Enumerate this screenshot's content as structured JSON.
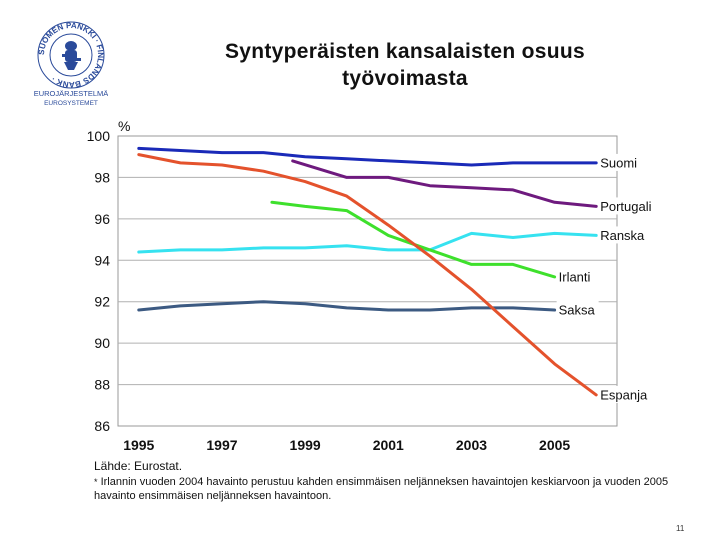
{
  "logo": {
    "ring_text": "SUOMEN PANKKI · FINLANDS BANK ·",
    "sub_line1": "EUROJÄRJESTELMÄ",
    "sub_line2": "EUROSYSTEMET"
  },
  "title": {
    "line1": "Syntyperäisten kansalaisten osuus",
    "line2": "työvoimasta"
  },
  "chart_data": {
    "type": "line",
    "title": "Syntyperäisten kansalaisten osuus työvoimasta",
    "xlabel": "",
    "ylabel": "%",
    "xlim": [
      1994.5,
      2006.5
    ],
    "ylim": [
      86,
      100
    ],
    "yticks": [
      86,
      88,
      90,
      92,
      94,
      96,
      98,
      100
    ],
    "xticks": [
      1995,
      1997,
      1999,
      2001,
      2003,
      2005
    ],
    "grid": "horizontal",
    "series": [
      {
        "name": "Suomi",
        "color": "#1a2ab8",
        "x": [
          1995,
          1996,
          1997,
          1998,
          1999,
          2000,
          2001,
          2002,
          2003,
          2004,
          2005,
          2006
        ],
        "y": [
          99.4,
          99.3,
          99.2,
          99.2,
          99.0,
          98.9,
          98.8,
          98.7,
          98.6,
          98.7,
          98.7,
          98.7
        ]
      },
      {
        "name": "Portugali",
        "color": "#6e1a7e",
        "x": [
          1998.7,
          2000,
          2001,
          2002,
          2003,
          2004,
          2005,
          2006
        ],
        "y": [
          98.8,
          98.0,
          98.0,
          97.6,
          97.5,
          97.4,
          96.8,
          96.6
        ]
      },
      {
        "name": "Ranska",
        "color": "#36e2f0",
        "x": [
          1995,
          1996,
          1997,
          1998,
          1999,
          2000,
          2001,
          2002,
          2003,
          2004,
          2005,
          2006
        ],
        "y": [
          94.4,
          94.5,
          94.5,
          94.6,
          94.6,
          94.7,
          94.5,
          94.5,
          95.3,
          95.1,
          95.3,
          95.2
        ]
      },
      {
        "name": "Irlanti",
        "color": "#3ee02c",
        "x": [
          1998.2,
          1999,
          2000,
          2001,
          2002,
          2003,
          2004,
          2005
        ],
        "y": [
          96.8,
          96.6,
          96.4,
          95.2,
          94.5,
          93.8,
          93.8,
          93.2
        ]
      },
      {
        "name": "Saksa",
        "color": "#3c5a82",
        "x": [
          1995,
          1996,
          1997,
          1998,
          1999,
          2000,
          2001,
          2002,
          2003,
          2004,
          2005
        ],
        "y": [
          91.6,
          91.8,
          91.9,
          92.0,
          91.9,
          91.7,
          91.6,
          91.6,
          91.7,
          91.7,
          91.6
        ]
      },
      {
        "name": "Espanja",
        "color": "#e4522c",
        "x": [
          1995,
          1996,
          1997,
          1998,
          1999,
          2000,
          2001,
          2002,
          2003,
          2004,
          2005,
          2006
        ],
        "y": [
          99.1,
          98.7,
          98.6,
          98.3,
          97.8,
          97.1,
          95.7,
          94.2,
          92.6,
          90.8,
          89.0,
          87.5
        ]
      }
    ]
  },
  "source": "Lähde: Eurostat.",
  "footnote": {
    "star": "*",
    "text": "Irlannin vuoden 2004 havainto perustuu kahden ensimmäisen neljänneksen havaintojen keskiarvoon ja vuoden 2005 havainto ensimmäisen neljänneksen havaintoon."
  },
  "page_number": "11"
}
